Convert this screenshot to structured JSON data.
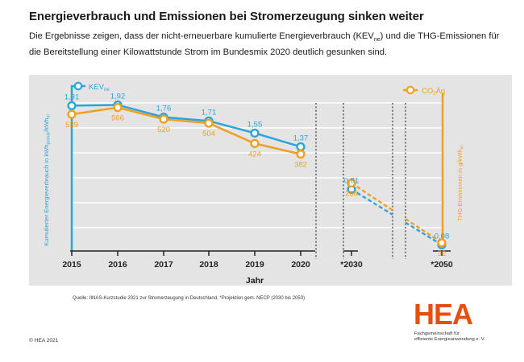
{
  "header": {
    "title": "Energieverbrauch und Emissionen bei Stromerzeugung sinken weiter",
    "subtitle_pre": "Die Ergebnisse zeigen, dass der nicht-erneuerbare kumulierte Energieverbrauch (KEV",
    "subtitle_sub": "ne",
    "subtitle_post": ") und die THG-Emissionen für die Bereitstellung einer Kilowattstunde Strom im Bundesmix 2020 deutlich gesunken sind."
  },
  "colors": {
    "kev": "#2aa5d9",
    "co2": "#f0a01e",
    "panel": "#e4e4e4",
    "axis": "#222222",
    "grid": "#ffffff"
  },
  "chart_data": {
    "type": "line",
    "xlabel": "Jahr",
    "categories": [
      "2015",
      "2016",
      "2017",
      "2018",
      "2019",
      "2020",
      "*2030",
      "*2050"
    ],
    "left_axis": {
      "label_main": "Kumulierter Energieverbrauch in kWh",
      "label_sub1": "primär",
      "label_mid": "/kWh",
      "label_sub2": "el",
      "ylim": [
        0,
        2.2
      ]
    },
    "right_axis": {
      "label_main": "THG-Emissionen in g/kWh",
      "label_sub": "el",
      "ylim": [
        0,
        660
      ]
    },
    "grid": true,
    "legend": [
      "top-left",
      "top-right"
    ],
    "series": [
      {
        "name": "KEV",
        "name_sub": "ne",
        "axis": "left",
        "values": [
          1.91,
          1.92,
          1.76,
          1.71,
          1.55,
          1.37,
          0.81,
          0.08
        ],
        "labels": [
          "1,91",
          "1,92",
          "1,76",
          "1,71",
          "1,55",
          "1,37",
          "0,81",
          "0,08"
        ]
      },
      {
        "name": "CO",
        "name_sub": "2",
        "name_post": "Äq",
        "axis": "right",
        "values": [
          539,
          566,
          520,
          504,
          424,
          382,
          268,
          32
        ],
        "labels": [
          "539",
          "566",
          "520",
          "504",
          "424",
          "382",
          "268",
          "32"
        ]
      }
    ]
  },
  "footer": {
    "source": "Quelle: IINAS-Kurzstudie 2021 zur Stromerzeugung in Deutschland, *Projektion gem. NECP (2030 bis 2050)",
    "copyright": "© HEA 2021",
    "logo": "HEA",
    "logo_sub_line1": "Fachgemeinschaft für",
    "logo_sub_line2": "effiziente Energieanwendung e. V."
  }
}
